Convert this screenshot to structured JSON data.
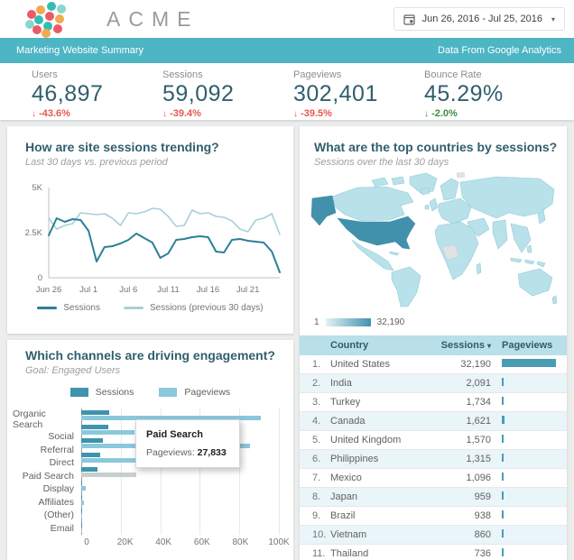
{
  "header": {
    "brand": "ACME",
    "logo_palette": [
      "#35bdb2",
      "#ea5b66",
      "#f2a950",
      "#86d8d0"
    ],
    "date_control": {
      "label": "Jun 26, 2016 - Jul 25, 2016",
      "caret": "▾"
    }
  },
  "banner": {
    "title": "Marketing Website Summary",
    "source_note": "Data From Google Analytics",
    "bg_color": "#4db5c4"
  },
  "kpis": [
    {
      "label": "Users",
      "value": "46,897",
      "arrow": "↓",
      "delta": "-43.6%",
      "delta_color": "#e8564e"
    },
    {
      "label": "Sessions",
      "value": "59,092",
      "arrow": "↓",
      "delta": "-39.4%",
      "delta_color": "#e8564e"
    },
    {
      "label": "Pageviews",
      "value": "302,401",
      "arrow": "↓",
      "delta": "-39.5%",
      "delta_color": "#e8564e"
    },
    {
      "label": "Bounce Rate",
      "value": "45.29%",
      "arrow": "↓",
      "delta": "-2.0%",
      "delta_color": "#3e8e41"
    }
  ],
  "sessions_section": {
    "title": "How are site sessions trending?",
    "subtitle": "Last 30 days vs. previous period"
  },
  "channels_section": {
    "title": "Which channels are driving engagement?",
    "subtitle": "Goal: Engaged Users",
    "tooltip": {
      "title": "Paid Search",
      "label": "Pageviews:",
      "value": "27,833"
    }
  },
  "map_section": {
    "title": "What are the top countries by sessions?",
    "subtitle": "Sessions over the last 30 days",
    "legend_min": "1",
    "legend_max": "32,190"
  },
  "country_table": {
    "columns": [
      "Country",
      "Sessions",
      "Pageviews"
    ],
    "sort_caret": "▾",
    "rows": [
      {
        "rank": "1.",
        "country": "United States",
        "sessions": "32,190",
        "bar": 1.0
      },
      {
        "rank": "2.",
        "country": "India",
        "sessions": "2,091",
        "bar": 0.02
      },
      {
        "rank": "3.",
        "country": "Turkey",
        "sessions": "1,734",
        "bar": 0.02
      },
      {
        "rank": "4.",
        "country": "Canada",
        "sessions": "1,621",
        "bar": 0.05
      },
      {
        "rank": "5.",
        "country": "United Kingdom",
        "sessions": "1,570",
        "bar": 0.02
      },
      {
        "rank": "6.",
        "country": "Philippines",
        "sessions": "1,315",
        "bar": 0.025
      },
      {
        "rank": "7.",
        "country": "Mexico",
        "sessions": "1,096",
        "bar": 0.025
      },
      {
        "rank": "8.",
        "country": "Japan",
        "sessions": "959",
        "bar": 0.02
      },
      {
        "rank": "9.",
        "country": "Brazil",
        "sessions": "938",
        "bar": 0.025
      },
      {
        "rank": "10.",
        "country": "Vietnam",
        "sessions": "860",
        "bar": 0.025
      },
      {
        "rank": "11.",
        "country": "Thailand",
        "sessions": "736",
        "bar": 0.025
      }
    ]
  },
  "chart_data": [
    {
      "type": "line",
      "title": "How are site sessions trending?",
      "x_tick_labels": [
        "Jun 26",
        "Jul 1",
        "Jul 6",
        "Jul 11",
        "Jul 16",
        "Jul 21"
      ],
      "x_tick_indices": [
        0,
        5,
        10,
        15,
        20,
        25
      ],
      "n_points": 30,
      "ylim": [
        0,
        5000
      ],
      "y_ticks": [
        {
          "label": "0",
          "value": 0
        },
        {
          "label": "2.5K",
          "value": 2500
        },
        {
          "label": "5K",
          "value": 5000
        }
      ],
      "grid": false,
      "legend_position": "bottom",
      "series": [
        {
          "name": "Sessions",
          "color": "#2c7f99",
          "values": [
            2350,
            3300,
            3100,
            3250,
            3200,
            2600,
            900,
            1700,
            1750,
            1900,
            2100,
            2450,
            2200,
            1950,
            1100,
            1350,
            2100,
            2150,
            2250,
            2300,
            2250,
            1450,
            1400,
            2100,
            2150,
            2050,
            2000,
            1950,
            1450,
            300
          ]
        },
        {
          "name": "Sessions (previous 30 days)",
          "color": "#a7d0da",
          "values": [
            3300,
            2700,
            2900,
            3000,
            3600,
            3550,
            3500,
            3550,
            3300,
            2900,
            3600,
            3550,
            3650,
            3850,
            3800,
            3400,
            2850,
            2900,
            3750,
            3550,
            3600,
            3400,
            3350,
            3150,
            2700,
            2550,
            3200,
            3300,
            3550,
            2400
          ]
        }
      ]
    },
    {
      "type": "bar",
      "orientation": "horizontal",
      "title": "Which channels are driving engagement?",
      "categories": [
        "Organic Search",
        "Social",
        "Referral",
        "Direct",
        "Paid Search",
        "Display",
        "Affiliates",
        "(Other)",
        "Email"
      ],
      "series": [
        {
          "name": "Sessions",
          "color": "#3f93ae",
          "values": [
            14000,
            13500,
            11000,
            9500,
            8000,
            400,
            250,
            120,
            60
          ]
        },
        {
          "name": "Pageviews",
          "color": "#8bc8dc",
          "values": [
            91000,
            27000,
            85500,
            65000,
            27833,
            2100,
            1300,
            150,
            80
          ]
        }
      ],
      "xlim": [
        0,
        100000
      ],
      "x_ticks": [
        "0",
        "20K",
        "40K",
        "60K",
        "80K",
        "100K"
      ],
      "legend_position": "top",
      "highlighted": {
        "category": "Paid Search",
        "series": "Pageviews",
        "value": 27833,
        "dim_color": "#c5cfcc"
      }
    },
    {
      "type": "choropleth",
      "title": "What are the top countries by sessions?",
      "metric": "Sessions",
      "range": [
        1,
        32190
      ],
      "top_country": {
        "name": "United States",
        "value": 32190
      },
      "base_color": "#b9e1ea",
      "max_color": "#4191ad",
      "no_data_color": "#e0e3e3"
    }
  ]
}
